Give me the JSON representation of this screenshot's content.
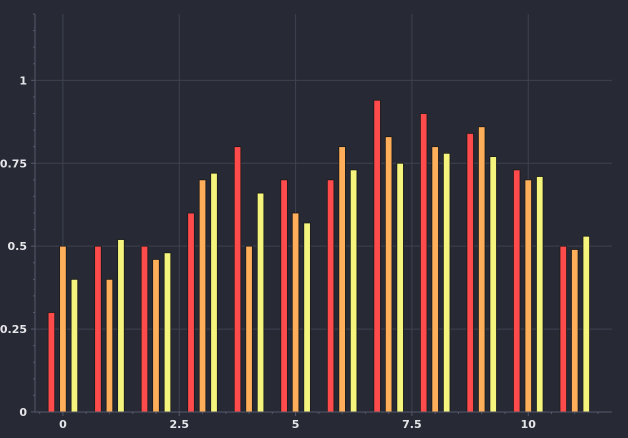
{
  "chart_data": {
    "type": "bar",
    "title": "",
    "xlabel": "",
    "ylabel": "",
    "xlim": [
      -0.6,
      11.8
    ],
    "ylim": [
      0,
      1.2
    ],
    "grid": true,
    "x_ticks": [
      0,
      2.5,
      5,
      7.5,
      10
    ],
    "x_tick_labels": [
      "0",
      "2.5",
      "5",
      "7.5",
      "10"
    ],
    "y_ticks": [
      0,
      0.25,
      0.5,
      0.75,
      1
    ],
    "y_tick_labels": [
      "0",
      "0.25",
      "0.5",
      "0.75",
      "1"
    ],
    "x": [
      0,
      1,
      2,
      3,
      4,
      5,
      6,
      7,
      8,
      9,
      10,
      11
    ],
    "series": [
      {
        "color": "#ff4b4b",
        "values": [
          0.3,
          0.5,
          0.5,
          0.6,
          0.8,
          0.7,
          0.7,
          0.94,
          0.9,
          0.84,
          0.73,
          0.5
        ]
      },
      {
        "color": "#ffae5a",
        "values": [
          0.5,
          0.4,
          0.46,
          0.7,
          0.5,
          0.6,
          0.8,
          0.83,
          0.8,
          0.86,
          0.7,
          0.49
        ]
      },
      {
        "color": "#f5f57e",
        "values": [
          0.4,
          0.52,
          0.48,
          0.72,
          0.66,
          0.57,
          0.73,
          0.75,
          0.78,
          0.77,
          0.71,
          0.53
        ]
      }
    ],
    "background": "#272a35",
    "grid_color": "#3f4250",
    "axis_color": "#55586a"
  }
}
